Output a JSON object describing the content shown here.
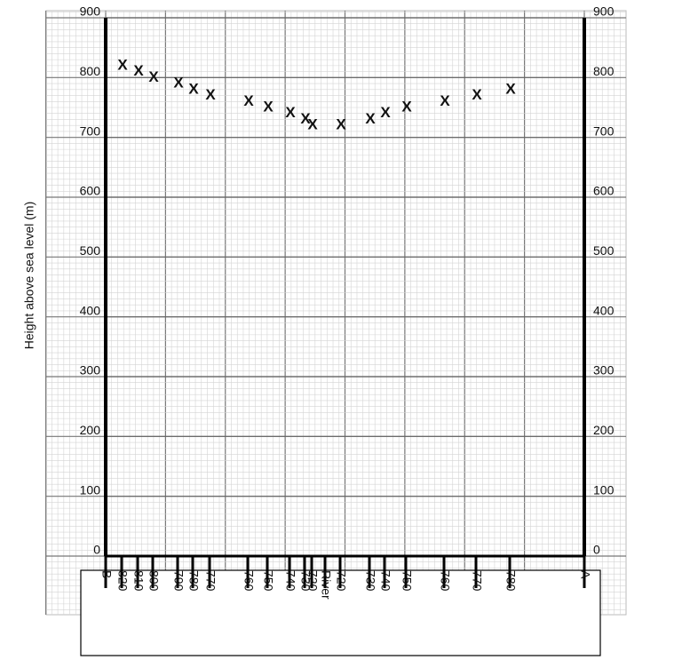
{
  "chart_data": {
    "type": "cross-section",
    "y_label": "Height above sea level (m)",
    "categories": [
      "B",
      "820",
      "810",
      "800",
      "790",
      "780",
      "770",
      "760",
      "750",
      "740",
      "730",
      "720",
      "River",
      "720",
      "730",
      "740",
      "750",
      "760",
      "770",
      "780",
      "A"
    ],
    "values": [
      null,
      820,
      810,
      800,
      790,
      780,
      770,
      760,
      750,
      740,
      730,
      720,
      null,
      720,
      730,
      740,
      750,
      760,
      770,
      780,
      null
    ],
    "marker": "X",
    "ylim": [
      0,
      900
    ],
    "yticks": [
      0,
      100,
      200,
      300,
      400,
      500,
      600,
      700,
      800,
      900
    ],
    "grid": true
  }
}
